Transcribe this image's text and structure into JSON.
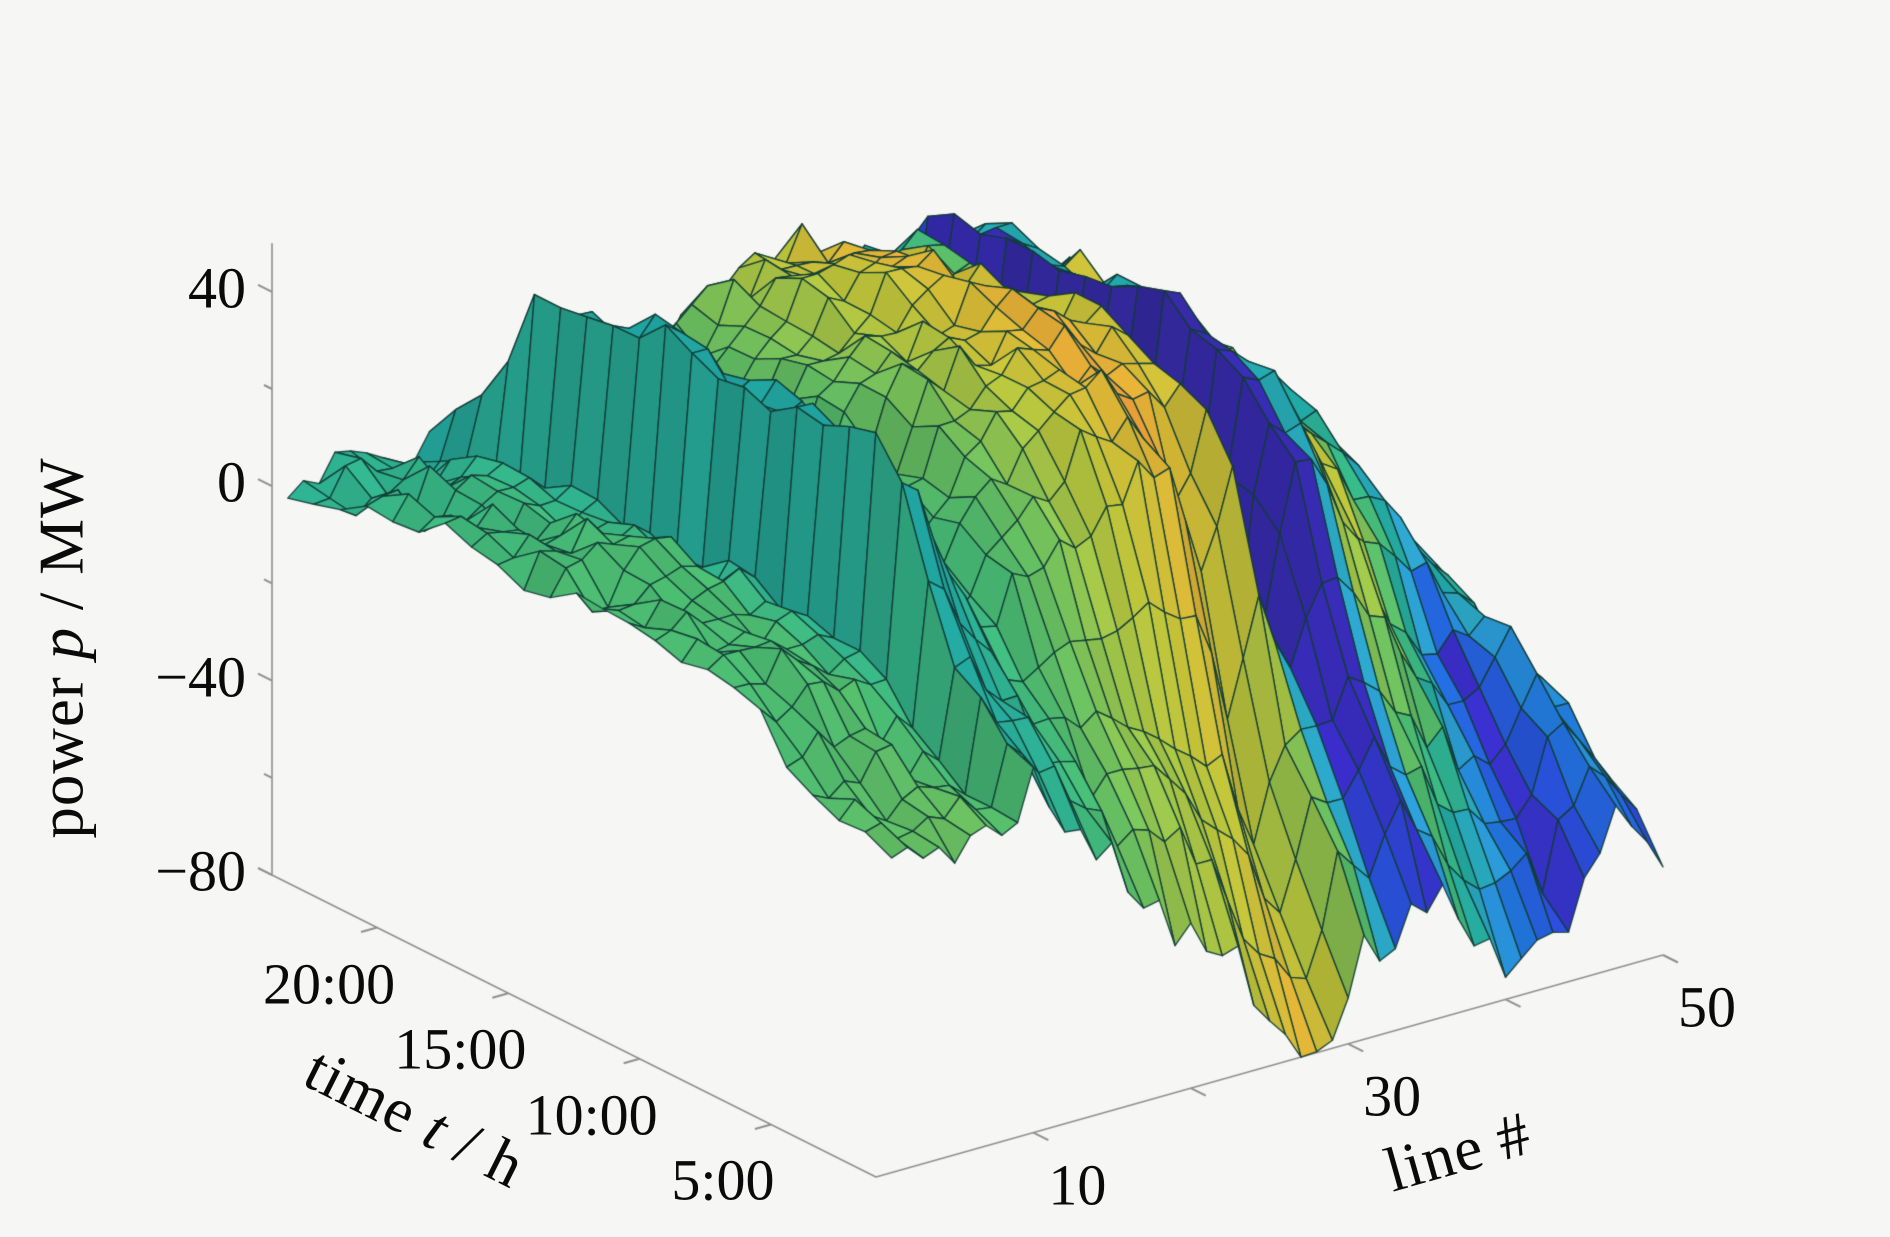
{
  "figure": {
    "background": "#f6f6f4",
    "kind": "3d-surface-plot"
  },
  "chart_data": {
    "type": "surface",
    "title": "",
    "axes": {
      "z": {
        "title": {
          "pre": "power ",
          "var": "p",
          "post": " / MW"
        },
        "range": [
          -80,
          50
        ],
        "major_ticks": [
          40,
          0,
          -40,
          -80
        ],
        "minor_ticks": [
          20,
          -20,
          -60
        ],
        "tick_labels": [
          "40",
          "0",
          "−40",
          "−80"
        ]
      },
      "time": {
        "title": {
          "pre": "time ",
          "var": "t",
          "post": " / h"
        },
        "range_hours": [
          1,
          24
        ],
        "ticks_hours": [
          20,
          15,
          10,
          5
        ],
        "tick_labels": [
          "20:00",
          "15:00",
          "10:00",
          "5:00"
        ]
      },
      "line": {
        "title": {
          "pre": "line #",
          "var": "",
          "post": ""
        },
        "range": [
          0,
          50
        ],
        "ticks": [
          10,
          20,
          30,
          40,
          50
        ],
        "labeled_ticks": [
          10,
          30,
          50
        ],
        "tick_labels": [
          "10",
          "30",
          "50"
        ]
      }
    },
    "surface": {
      "description": "estimated power flow p(line,time); z clipped to [-80,50]; color is a separate scalar c in [0,1] mapped through the parula colormap",
      "line_count": 50,
      "time_count": 24,
      "line_knots": [
        1,
        6,
        9,
        10,
        12,
        15,
        19,
        23,
        27,
        29,
        31,
        33,
        35,
        37,
        40,
        44,
        47,
        50
      ],
      "time_knots": [
        1,
        2,
        4,
        6,
        8,
        11,
        14,
        17,
        20,
        22,
        24
      ],
      "z_grid": [
        [
          -16,
          -14,
          -8,
          0,
          3,
          5,
          6,
          5,
          3,
          2,
          0
        ],
        [
          -18,
          -15,
          -9,
          2,
          6,
          9,
          10,
          8,
          5,
          2,
          0
        ],
        [
          -20,
          -16,
          -10,
          0,
          4,
          7,
          8,
          6,
          4,
          1,
          -2
        ],
        [
          -6,
          0,
          10,
          42,
          45,
          46,
          45,
          44,
          42,
          15,
          0
        ],
        [
          -18,
          -10,
          0,
          25,
          38,
          40,
          40,
          39,
          36,
          15,
          0
        ],
        [
          -30,
          -20,
          -8,
          5,
          8,
          10,
          9,
          8,
          6,
          0,
          -4
        ],
        [
          -45,
          -30,
          -12,
          15,
          28,
          32,
          31,
          30,
          26,
          8,
          -2
        ],
        [
          -58,
          -40,
          -15,
          25,
          38,
          42,
          41,
          40,
          34,
          12,
          0
        ],
        [
          -80,
          -65,
          -30,
          28,
          42,
          46,
          45,
          43,
          36,
          14,
          2
        ],
        [
          -78,
          -70,
          -45,
          5,
          32,
          40,
          40,
          38,
          32,
          10,
          0
        ],
        [
          -60,
          -45,
          -25,
          22,
          36,
          42,
          40,
          38,
          32,
          10,
          0
        ],
        [
          -60,
          -50,
          -30,
          -12,
          -8,
          -6,
          -6,
          -8,
          -10,
          -14,
          -15
        ],
        [
          -55,
          -40,
          -18,
          25,
          36,
          40,
          39,
          38,
          32,
          10,
          0
        ],
        [
          -60,
          -45,
          -20,
          18,
          30,
          36,
          35,
          34,
          28,
          8,
          -2
        ],
        [
          -72,
          -60,
          -35,
          -10,
          12,
          22,
          24,
          22,
          18,
          4,
          -6
        ],
        [
          -70,
          -60,
          -45,
          -25,
          0,
          10,
          12,
          10,
          8,
          0,
          -8
        ],
        [
          -45,
          -38,
          -30,
          -22,
          -15,
          -10,
          -8,
          -8,
          -10,
          -12,
          -13
        ],
        [
          -62,
          -55,
          -45,
          -35,
          -28,
          -24,
          -22,
          -22,
          -24,
          -20,
          -15
        ]
      ],
      "c_grid": [
        [
          0.62,
          0.62,
          0.6,
          0.58,
          0.58,
          0.58,
          0.58,
          0.56,
          0.54,
          0.52,
          0.5
        ],
        [
          0.66,
          0.64,
          0.62,
          0.6,
          0.58,
          0.58,
          0.58,
          0.56,
          0.54,
          0.52,
          0.5
        ],
        [
          0.6,
          0.58,
          0.55,
          0.52,
          0.48,
          0.47,
          0.47,
          0.48,
          0.48,
          0.48,
          0.46
        ],
        [
          0.48,
          0.47,
          0.46,
          0.45,
          0.45,
          0.45,
          0.45,
          0.45,
          0.45,
          0.46,
          0.46
        ],
        [
          0.52,
          0.5,
          0.48,
          0.46,
          0.45,
          0.45,
          0.45,
          0.45,
          0.46,
          0.47,
          0.48
        ],
        [
          0.6,
          0.58,
          0.56,
          0.55,
          0.54,
          0.54,
          0.54,
          0.54,
          0.53,
          0.52,
          0.5
        ],
        [
          0.7,
          0.7,
          0.68,
          0.66,
          0.65,
          0.66,
          0.66,
          0.66,
          0.64,
          0.6,
          0.55
        ],
        [
          0.76,
          0.76,
          0.74,
          0.78,
          0.8,
          0.8,
          0.78,
          0.78,
          0.76,
          0.7,
          0.62
        ],
        [
          0.88,
          0.86,
          0.8,
          0.86,
          0.9,
          0.9,
          0.88,
          0.88,
          0.84,
          0.75,
          0.65
        ],
        [
          0.8,
          0.78,
          0.74,
          0.8,
          0.84,
          0.84,
          0.82,
          0.82,
          0.78,
          0.72,
          0.64
        ],
        [
          0.55,
          0.6,
          0.68,
          0.78,
          0.8,
          0.78,
          0.75,
          0.4,
          0.1,
          0.3,
          0.55
        ],
        [
          0.3,
          0.15,
          0.06,
          0.04,
          0.04,
          0.03,
          0.03,
          0.03,
          0.04,
          0.15,
          0.4
        ],
        [
          0.15,
          0.08,
          0.05,
          0.04,
          0.04,
          0.03,
          0.03,
          0.04,
          0.05,
          0.25,
          0.45
        ],
        [
          0.5,
          0.55,
          0.62,
          0.72,
          0.8,
          0.82,
          0.82,
          0.8,
          0.78,
          0.72,
          0.62
        ],
        [
          0.2,
          0.3,
          0.5,
          0.7,
          0.78,
          0.8,
          0.78,
          0.76,
          0.72,
          0.66,
          0.58
        ],
        [
          0.1,
          0.08,
          0.07,
          0.06,
          0.35,
          0.1,
          0.07,
          0.06,
          0.06,
          0.08,
          0.1
        ],
        [
          0.2,
          0.25,
          0.35,
          0.45,
          0.48,
          0.4,
          0.25,
          0.15,
          0.12,
          0.12,
          0.14
        ],
        [
          0.07,
          0.07,
          0.08,
          0.1,
          0.15,
          0.3,
          0.4,
          0.44,
          0.45,
          0.45,
          0.45
        ]
      ]
    },
    "colormap": {
      "name": "parula",
      "stops": [
        [
          0.0,
          "#352a87"
        ],
        [
          0.06,
          "#3c2fd2"
        ],
        [
          0.15,
          "#2a55e6"
        ],
        [
          0.25,
          "#2178dd"
        ],
        [
          0.35,
          "#30acd8"
        ],
        [
          0.45,
          "#21a8a4"
        ],
        [
          0.52,
          "#35b98c"
        ],
        [
          0.58,
          "#4cbd72"
        ],
        [
          0.65,
          "#73c45f"
        ],
        [
          0.72,
          "#a5c849"
        ],
        [
          0.78,
          "#c3c93c"
        ],
        [
          0.85,
          "#e3bc37"
        ],
        [
          0.9,
          "#f2a63a"
        ],
        [
          1.0,
          "#f8df33"
        ]
      ]
    },
    "colors": {
      "mesh_edge": "#123c35",
      "axis_line": "#8f8f8f",
      "text": "#0a0a0a",
      "background": "#f6f6f4"
    },
    "layout_hints": {
      "grid": "off",
      "legend": "none",
      "view": "matlab default 3-D (az -37.5, el 30)"
    }
  }
}
